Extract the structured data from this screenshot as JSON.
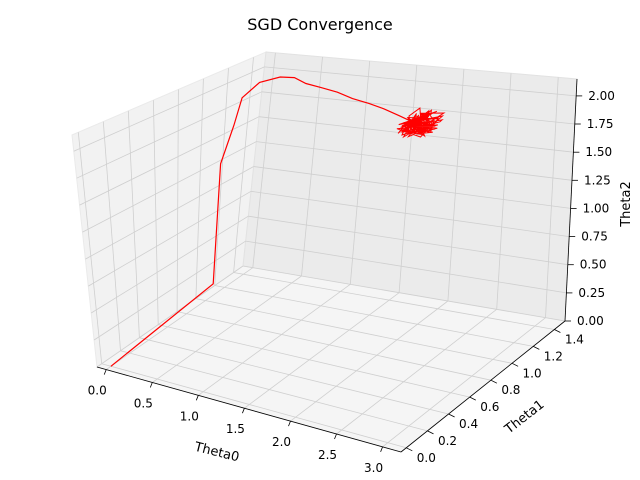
{
  "chart_data": {
    "type": "line",
    "projection": "3d",
    "title": "SGD Convergence",
    "xlabel": "Theta0",
    "ylabel": "Theta1",
    "zlabel": "Theta2",
    "xlim": [
      -0.1,
      3.2
    ],
    "ylim": [
      -0.05,
      1.5
    ],
    "zlim": [
      0,
      2.15
    ],
    "xticks": [
      "0.0",
      "0.5",
      "1.0",
      "1.5",
      "2.0",
      "2.5",
      "3.0"
    ],
    "yticks": [
      "0.0",
      "0.2",
      "0.4",
      "0.6",
      "0.8",
      "1.0",
      "1.2",
      "1.4"
    ],
    "zticks": [
      "0.00",
      "0.25",
      "0.50",
      "0.75",
      "1.00",
      "1.25",
      "1.50",
      "1.75",
      "2.00"
    ],
    "grid": true,
    "series": [
      {
        "color": "#ff0000",
        "points": [
          {
            "x": 0.0,
            "y": 0.0,
            "z": 0.0
          },
          {
            "x": 0.55,
            "y": 0.55,
            "z": 0.55
          },
          {
            "x": 0.35,
            "y": 0.8,
            "z": 1.5
          },
          {
            "x": 0.3,
            "y": 0.95,
            "z": 1.78
          },
          {
            "x": 0.25,
            "y": 1.05,
            "z": 1.98
          },
          {
            "x": 0.3,
            "y": 1.15,
            "z": 2.08
          },
          {
            "x": 0.45,
            "y": 1.2,
            "z": 2.12
          },
          {
            "x": 0.6,
            "y": 1.2,
            "z": 2.13
          },
          {
            "x": 0.75,
            "y": 1.18,
            "z": 2.1
          },
          {
            "x": 0.95,
            "y": 1.15,
            "z": 2.1
          },
          {
            "x": 1.15,
            "y": 1.13,
            "z": 2.09
          },
          {
            "x": 1.35,
            "y": 1.1,
            "z": 2.07
          },
          {
            "x": 1.55,
            "y": 1.08,
            "z": 2.06
          },
          {
            "x": 1.75,
            "y": 1.05,
            "z": 2.05
          },
          {
            "x": 1.95,
            "y": 1.02,
            "z": 2.03
          },
          {
            "x": 2.1,
            "y": 1.0,
            "z": 2.01
          },
          {
            "x": 2.2,
            "y": 1.0,
            "z": 2.0
          }
        ],
        "noise_cluster": {
          "center": {
            "x": 2.2,
            "y": 1.0,
            "z": 2.0
          },
          "spread": 0.07
        }
      }
    ]
  }
}
